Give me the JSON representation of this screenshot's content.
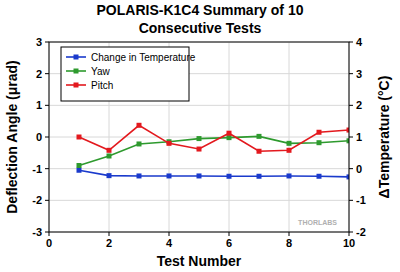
{
  "chart_data": {
    "type": "line",
    "title": "POLARIS-K1C4 Summary of 10 Consecutive Tests",
    "x_label": "Test Number",
    "y_label": "Deflection Angle (μrad)",
    "y2_label": "ΔTemperature (°C)",
    "x": [
      1,
      2,
      3,
      4,
      5,
      6,
      7,
      8,
      9,
      10
    ],
    "series": [
      {
        "name": "Change in Temperature",
        "color": "#1a3acc",
        "marker": "square",
        "line_style": "solid",
        "axis": "y2",
        "values": [
          -0.05,
          -0.22,
          -0.23,
          -0.23,
          -0.23,
          -0.24,
          -0.24,
          -0.23,
          -0.24,
          -0.26
        ]
      },
      {
        "name": "Yaw",
        "color": "#2e9a2e",
        "marker": "square",
        "line_style": "solid",
        "values": [
          -0.9,
          -0.6,
          -0.22,
          -0.15,
          -0.05,
          -0.02,
          0.02,
          -0.2,
          -0.18,
          -0.12
        ]
      },
      {
        "name": "Pitch",
        "color": "#e3191e",
        "marker": "square",
        "line_style": "solid",
        "values": [
          0.0,
          -0.42,
          0.37,
          -0.2,
          -0.38,
          0.12,
          -0.45,
          -0.42,
          0.15,
          0.22
        ]
      }
    ],
    "xlim": [
      0,
      10
    ],
    "xticks": [
      0,
      2,
      4,
      6,
      8,
      10
    ],
    "ylim": [
      -3,
      3
    ],
    "yticks": [
      -3,
      -2,
      -1,
      0,
      1,
      2,
      3
    ],
    "y2lim": [
      -2,
      4
    ],
    "y2ticks": [
      -2,
      -1,
      0,
      1,
      2,
      3,
      4
    ],
    "grid": true,
    "legend": "upper left",
    "annotations": [
      "THORLABS"
    ]
  }
}
